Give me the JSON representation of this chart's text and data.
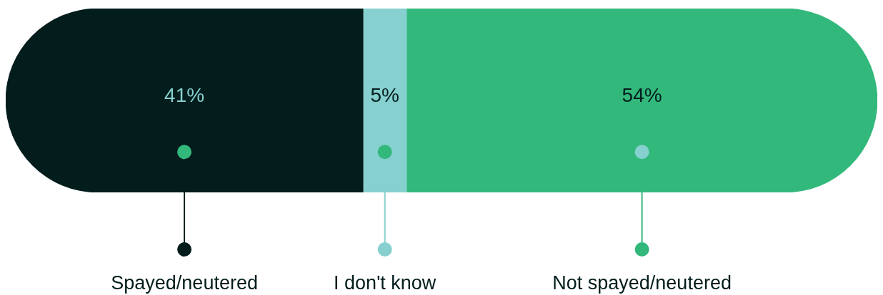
{
  "chart_data": {
    "type": "bar",
    "orientation": "horizontal",
    "stacked": true,
    "categories": [
      null
    ],
    "legend": "bottom",
    "series": [
      {
        "name": "Spayed/neutered",
        "color": "#031c1c",
        "values": [
          41
        ],
        "value_labels": [
          "41%"
        ]
      },
      {
        "name": "I don't know",
        "color": "#86d0cf",
        "values": [
          5
        ],
        "value_labels": [
          "5%"
        ]
      },
      {
        "name": "Not spayed/neutered",
        "color": "#33b87c",
        "values": [
          54
        ],
        "value_labels": [
          "54%"
        ]
      }
    ]
  }
}
